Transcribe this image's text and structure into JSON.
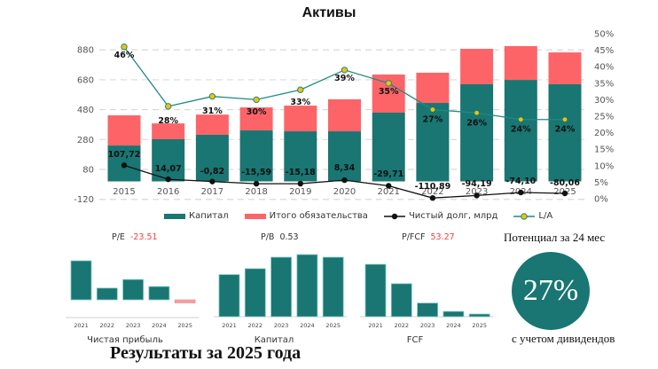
{
  "title": "Активы",
  "legend": {
    "capital": "Капитал",
    "liabilities": "Итого обязательства",
    "net_debt": "Чистый долг, млрд",
    "la": "L/A"
  },
  "colors": {
    "capital": "#197672",
    "liabilities": "#fd6468",
    "net_debt": "#111111",
    "la_line": "#1f8a85",
    "la_marker": "#f2c200",
    "negative_bar": "#f4a0a3",
    "kpi_red": "#e84545"
  },
  "kpis": {
    "pe_label": "P/E",
    "pe_value": "-23.51",
    "pb_label": "P/B",
    "pb_value": "0.53",
    "pfcf_label": "P/FCF",
    "pfcf_value": "53.27"
  },
  "potential": {
    "title": "Потенциал за 24 мес",
    "value": "27%",
    "subtitle": "с учетом дивидендов"
  },
  "footer": "Результаты за 2025 года",
  "chart_data": [
    {
      "type": "bar",
      "stacked": true,
      "title": "Активы",
      "categories": [
        "2015",
        "2016",
        "2017",
        "2018",
        "2019",
        "2020",
        "2021",
        "2022",
        "2023",
        "2024",
        "2025"
      ],
      "series": [
        {
          "name": "Капитал",
          "type": "bar",
          "values": [
            240,
            282,
            312,
            341,
            335,
            335,
            460,
            525,
            650,
            679,
            650
          ]
        },
        {
          "name": "Итого обязательства",
          "type": "bar",
          "values": [
            202,
            106,
            135,
            154,
            172,
            214,
            255,
            202,
            237,
            226,
            213
          ]
        },
        {
          "name": "Чистый долг, млрд",
          "type": "line",
          "axis": "left",
          "values": [
            107.72,
            14.07,
            -0.82,
            -15.59,
            -15.18,
            8.34,
            -29.71,
            -110.89,
            -94.19,
            -74.1,
            -80.06
          ],
          "labels": [
            "107,72",
            "14,07",
            "-0,82",
            "-15,59",
            "-15,18",
            "8,34",
            "-29,71",
            "-110,89",
            "-94,19",
            "-74,10",
            "-80,06"
          ]
        },
        {
          "name": "L/A",
          "type": "line",
          "axis": "right",
          "values": [
            46,
            28,
            31,
            30,
            33,
            39,
            35,
            27,
            26,
            24,
            24
          ],
          "labels": [
            "46%",
            "28%",
            "31%",
            "30%",
            "33%",
            "39%",
            "35%",
            "27%",
            "26%",
            "24%",
            "24%"
          ]
        }
      ],
      "y_left": {
        "ticks": [
          880,
          680,
          480,
          280,
          80,
          -120
        ],
        "tick_labels": [
          "880",
          "680",
          "480",
          "280",
          "80",
          "-120"
        ],
        "range": [
          -120,
          960
        ]
      },
      "y_right": {
        "ticks": [
          0,
          5,
          10,
          15,
          20,
          25,
          30,
          35,
          40,
          45,
          50
        ],
        "tick_labels": [
          "0%",
          "5%",
          "10%",
          "15%",
          "20%",
          "25%",
          "30%",
          "35%",
          "40%",
          "45%",
          "50%"
        ],
        "range": [
          0,
          50
        ]
      },
      "grid": true,
      "legend_position": "bottom"
    },
    {
      "type": "bar",
      "title": "Чистая прибыль",
      "header": "P/E -23.51",
      "categories": [
        "2021",
        "2022",
        "2023",
        "2024",
        "2025"
      ],
      "values": [
        100,
        30,
        52,
        34,
        -8
      ],
      "unit": "relative"
    },
    {
      "type": "bar",
      "title": "Капитал",
      "header": "P/B 0.53",
      "categories": [
        "2021",
        "2022",
        "2023",
        "2024",
        "2025"
      ],
      "values": [
        460,
        525,
        650,
        679,
        650
      ]
    },
    {
      "type": "bar",
      "title": "FCF",
      "header": "P/FCF 53.27",
      "categories": [
        "2021",
        "2022",
        "2023",
        "2024",
        "2025"
      ],
      "values": [
        100,
        63,
        26,
        10,
        5
      ],
      "unit": "relative"
    }
  ]
}
